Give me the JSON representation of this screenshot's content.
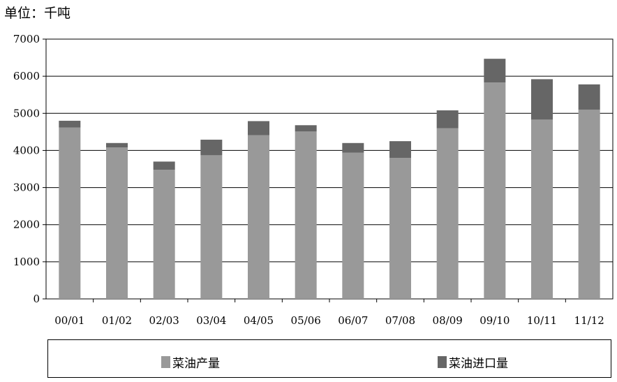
{
  "unit_label": "单位：千吨",
  "chart_data": {
    "type": "bar",
    "stacked": true,
    "categories": [
      "00/01",
      "01/02",
      "02/03",
      "03/04",
      "04/05",
      "05/06",
      "06/07",
      "07/08",
      "08/09",
      "09/10",
      "10/11",
      "11/12"
    ],
    "series": [
      {
        "name": "菜油产量",
        "color": "#999999",
        "values": [
          4620,
          4080,
          3480,
          3870,
          4410,
          4510,
          3940,
          3800,
          4600,
          5830,
          4830,
          5100
        ]
      },
      {
        "name": "菜油进口量",
        "color": "#666666",
        "values": [
          180,
          120,
          220,
          420,
          380,
          170,
          260,
          450,
          480,
          640,
          1090,
          680
        ]
      }
    ],
    "ylim": [
      0,
      7000
    ],
    "yticks": [
      "0",
      "1000",
      "2000",
      "3000",
      "4000",
      "5000",
      "6000",
      "7000"
    ],
    "grid": true,
    "legend_position": "bottom"
  }
}
